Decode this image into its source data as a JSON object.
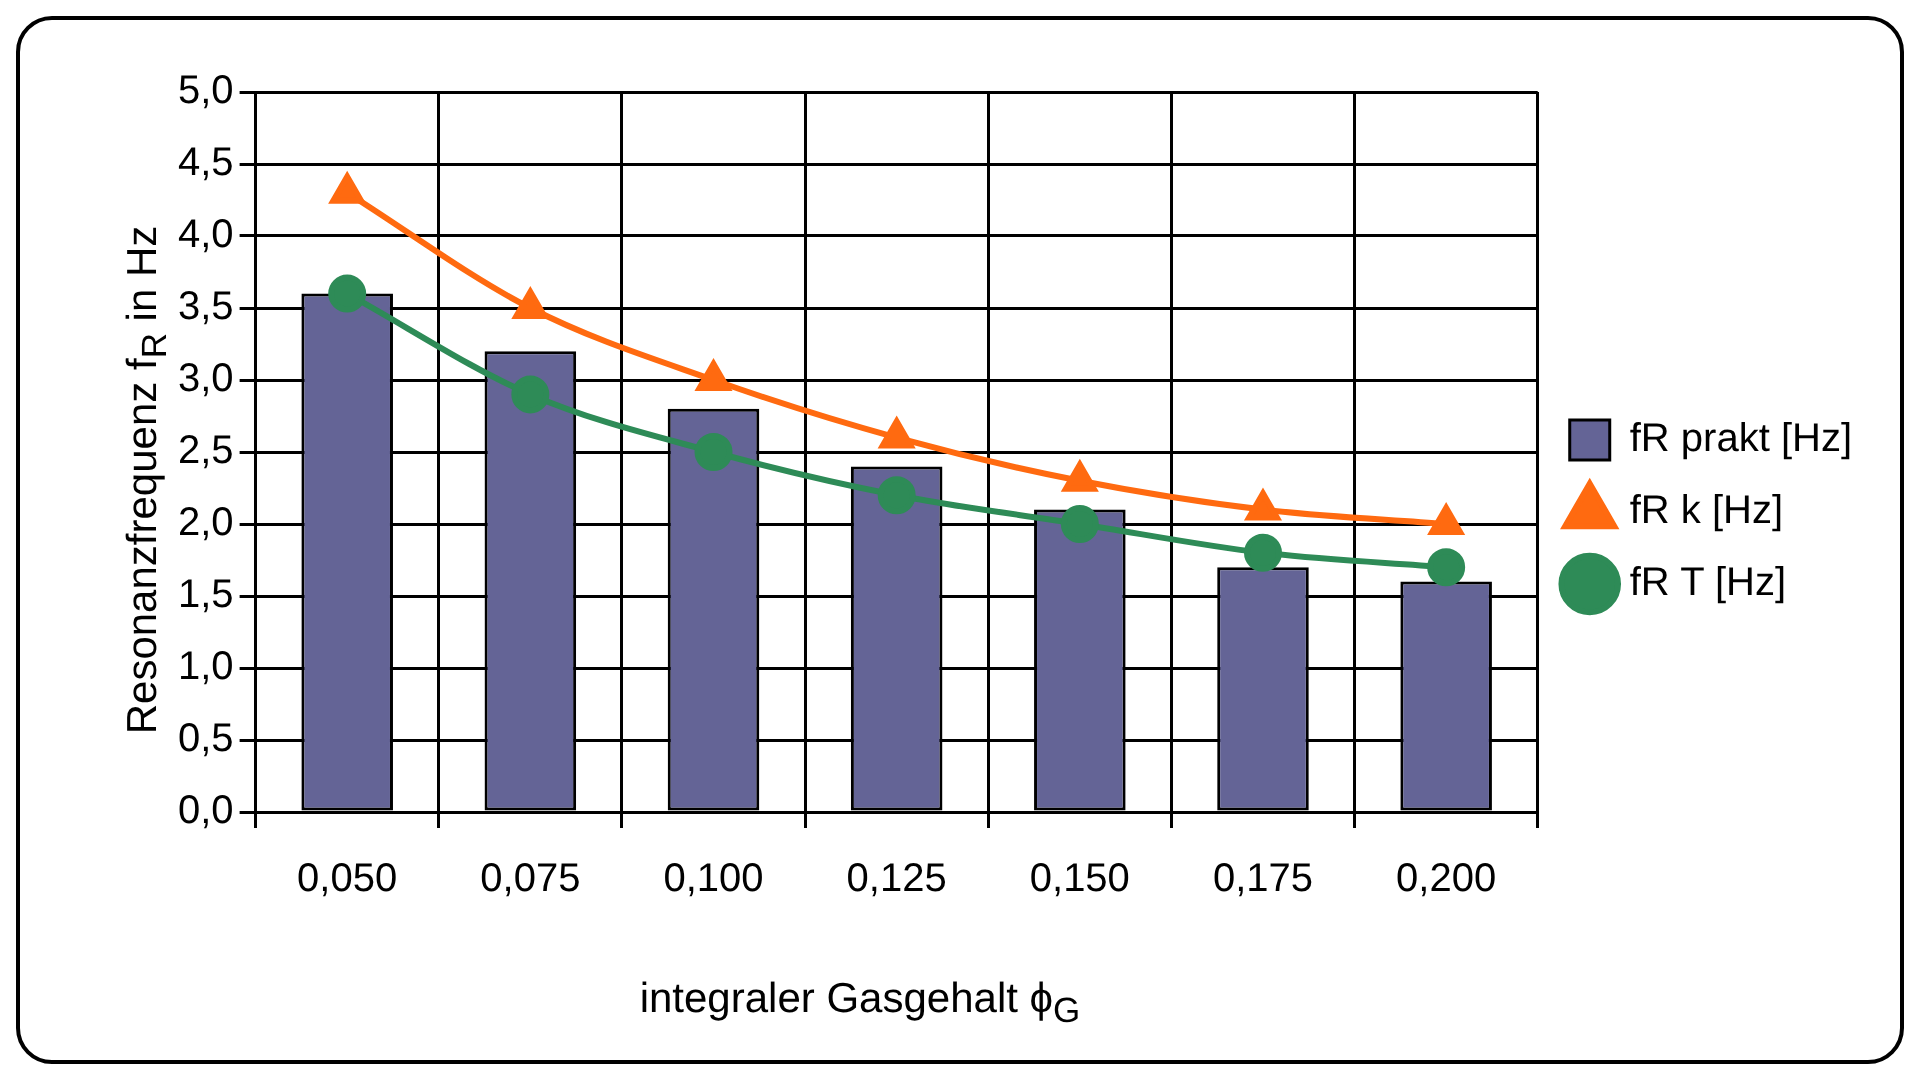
{
  "chart_data": {
    "type": "bar",
    "xlabel": "integraler Gasgehalt ϕ$_{G}$",
    "ylabel": "Resonanzfrequenz f$_{R}$ in Hz",
    "categories": [
      "0,050",
      "0,075",
      "0,100",
      "0,125",
      "0,150",
      "0,175",
      "0,200"
    ],
    "series": [
      {
        "name": "fR prakt [Hz]",
        "color": "#646496",
        "values": [
          3.6,
          3.2,
          2.8,
          2.4,
          2.1,
          1.7,
          1.6
        ]
      },
      {
        "name": "fR k [Hz]",
        "type": "line",
        "color": "#ff6a10",
        "marker": "triangle",
        "values": [
          4.3,
          3.5,
          3.0,
          2.6,
          2.3,
          2.1,
          2.0
        ]
      },
      {
        "name": "fR T [Hz]",
        "type": "line",
        "color": "#2e8b57",
        "marker": "circle",
        "values": [
          3.6,
          2.9,
          2.5,
          2.2,
          2.0,
          1.8,
          1.7
        ]
      }
    ],
    "ylim": [
      0,
      5
    ],
    "yticks": [
      {
        "value": 0,
        "label": "0,0"
      },
      {
        "value": 0.5,
        "label": "0,5"
      },
      {
        "value": 1,
        "label": "1,0"
      },
      {
        "value": 1.5,
        "label": "1,5"
      },
      {
        "value": 2,
        "label": "2,0"
      },
      {
        "value": 2.5,
        "label": "2,5"
      },
      {
        "value": 3,
        "label": "3,0"
      },
      {
        "value": 3.5,
        "label": "3,5"
      },
      {
        "value": 4,
        "label": "4,0"
      },
      {
        "value": 4.5,
        "label": "4,5"
      },
      {
        "value": 5,
        "label": "5,0"
      }
    ],
    "grid": true,
    "legend": "right"
  }
}
